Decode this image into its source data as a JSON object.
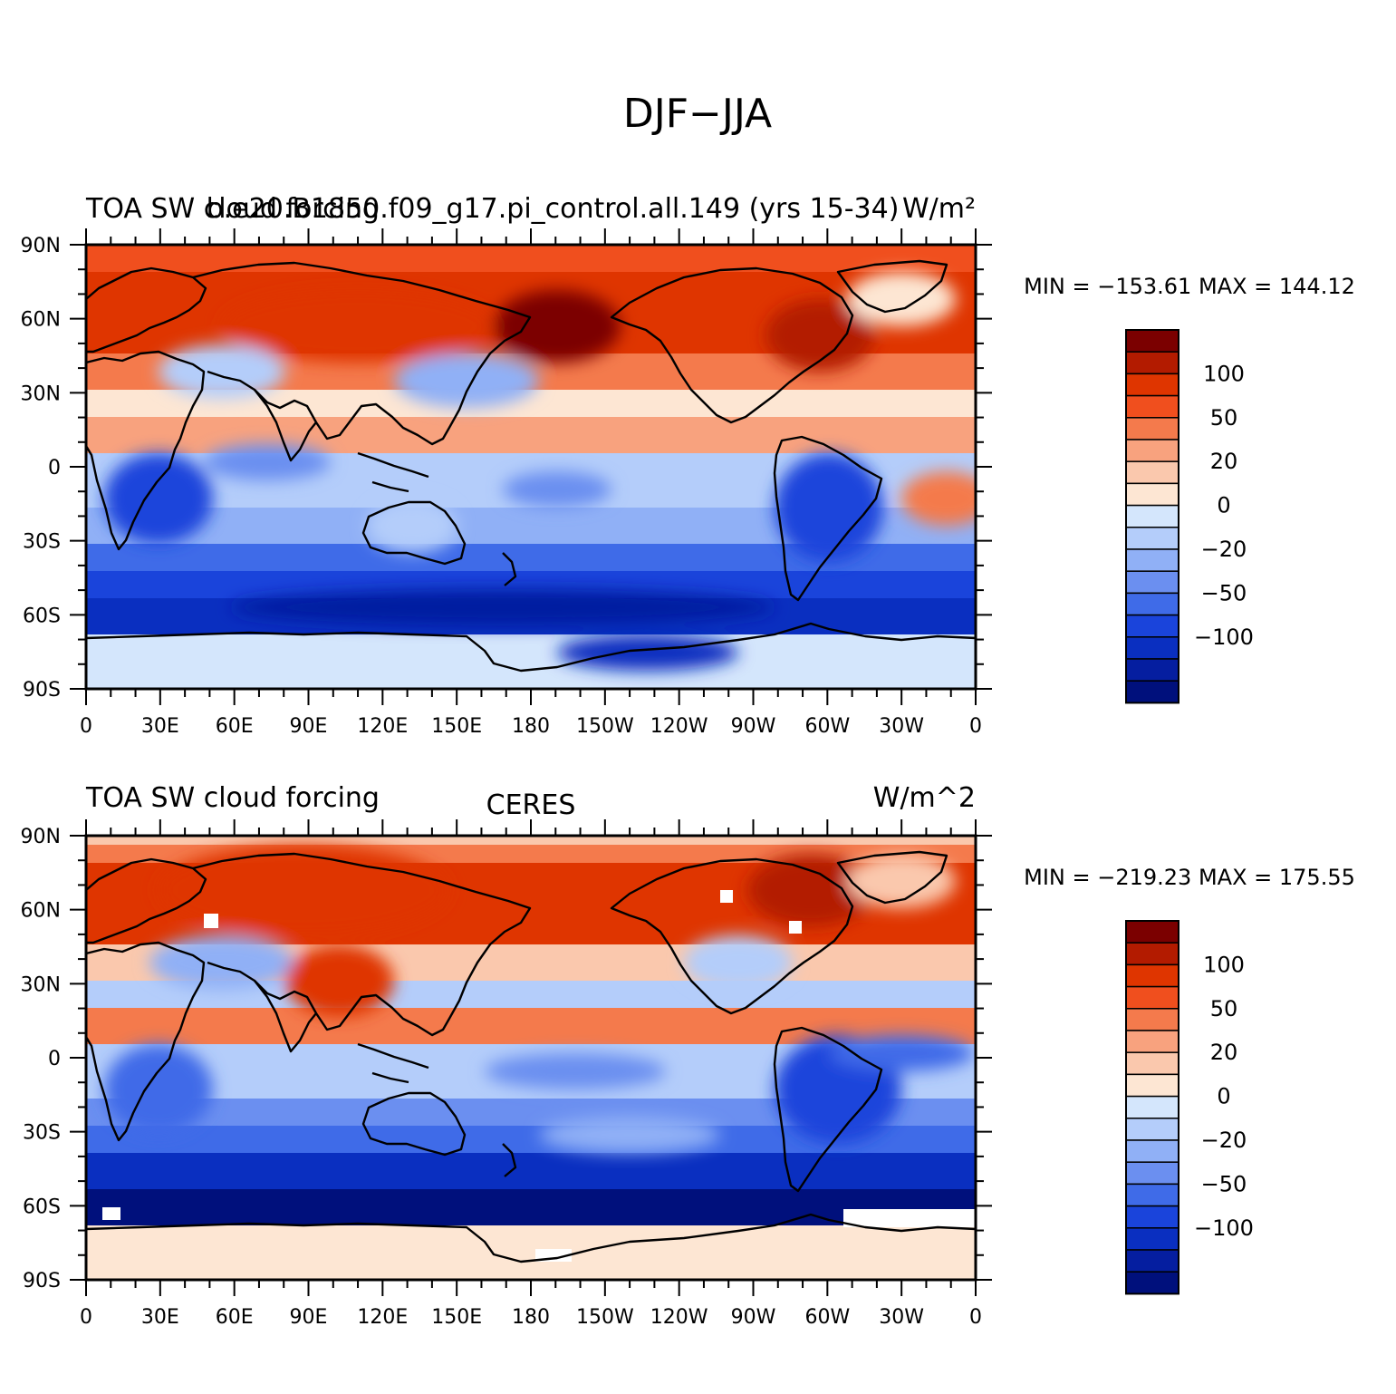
{
  "figure": {
    "title": "DJF−JJA"
  },
  "colorbar": {
    "colors": [
      "#7b0000",
      "#b31b00",
      "#df3500",
      "#f04f1e",
      "#f47a4c",
      "#f8a27e",
      "#fac8ad",
      "#fde6d3",
      "#d4e6fc",
      "#b4cdfa",
      "#90b0f6",
      "#6b8ff0",
      "#3f6be8",
      "#1a44db",
      "#0a2fc0",
      "#051ea0",
      "#00107c"
    ],
    "labels": [
      {
        "text": "100",
        "after_box": 2
      },
      {
        "text": "50",
        "after_box": 4
      },
      {
        "text": "20",
        "after_box": 6
      },
      {
        "text": "0",
        "after_box": 8
      },
      {
        "text": "−20",
        "after_box": 10
      },
      {
        "text": "−50",
        "after_box": 12
      },
      {
        "text": "−100",
        "after_box": 14
      }
    ]
  },
  "axes": {
    "lat_ticks": [
      "90N",
      "60N",
      "30N",
      "0",
      "30S",
      "60S",
      "90S"
    ],
    "lon_ticks": [
      "0",
      "30E",
      "60E",
      "90E",
      "120E",
      "150E",
      "180",
      "150W",
      "120W",
      "90W",
      "60W",
      "30W",
      "0"
    ]
  },
  "panels": [
    {
      "left_title": "TOA SW cloud forcing",
      "center_title": "b.e20.B1850.f09_g17.pi_control.all.149 (yrs 15-34)",
      "right_title": "W/m²",
      "stats": "MIN = −153.61  MAX = 144.12"
    },
    {
      "left_title": "TOA SW cloud forcing",
      "center_title": "CERES",
      "right_title": "W/m^2",
      "stats": "MIN = −219.23  MAX = 175.55"
    }
  ]
}
